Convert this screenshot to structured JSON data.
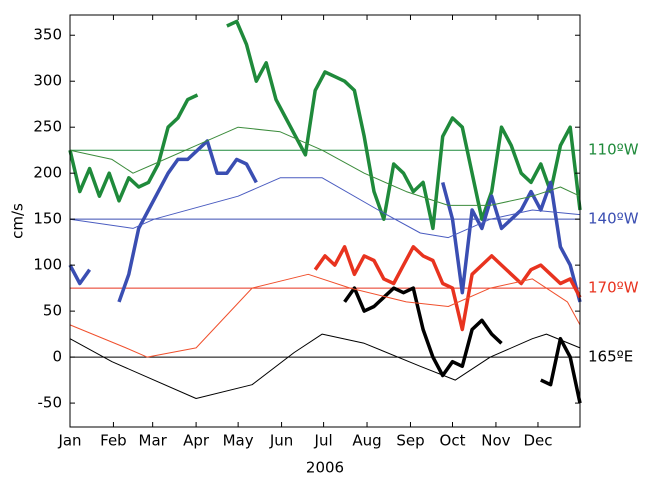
{
  "chart_data": {
    "type": "line",
    "xlabel": "2006",
    "ylabel": "cm/s",
    "xlim": [
      0,
      364
    ],
    "ylim": [
      -76,
      372
    ],
    "xticks": [
      {
        "value": 0,
        "label": "Jan"
      },
      {
        "value": 31,
        "label": "Feb"
      },
      {
        "value": 59,
        "label": "Mar"
      },
      {
        "value": 90,
        "label": "Apr"
      },
      {
        "value": 120,
        "label": "May"
      },
      {
        "value": 151,
        "label": "Jun"
      },
      {
        "value": 181,
        "label": "Jul"
      },
      {
        "value": 212,
        "label": "Aug"
      },
      {
        "value": 243,
        "label": "Sep"
      },
      {
        "value": 273,
        "label": "Oct"
      },
      {
        "value": 304,
        "label": "Nov"
      },
      {
        "value": 334,
        "label": "Dec"
      }
    ],
    "yticks": [
      -50,
      0,
      50,
      100,
      150,
      200,
      250,
      300,
      350
    ],
    "reference_lines": [
      {
        "value": 225,
        "label": "110ºW",
        "color": "#1f8a3b"
      },
      {
        "value": 150,
        "label": "140ºW",
        "color": "#3a4eb2"
      },
      {
        "value": 75,
        "label": "170ºW",
        "color": "#e8331f"
      },
      {
        "value": 0,
        "label": "165ºE",
        "color": "#000000"
      }
    ],
    "series": [
      {
        "color": "#1f8a3b",
        "width": 3.5,
        "x": [
          0,
          7,
          14,
          21,
          28,
          35,
          42,
          49,
          56,
          63,
          70,
          77,
          84,
          91,
          98,
          105,
          112,
          119,
          126,
          133,
          140,
          147,
          154,
          161,
          168,
          175,
          182,
          189,
          196,
          203,
          210,
          217,
          224,
          231,
          238,
          245,
          252,
          259,
          266,
          273,
          280,
          287,
          294,
          301,
          308,
          315,
          322,
          329,
          336,
          343,
          350,
          357,
          364
        ],
        "values": [
          225,
          180,
          205,
          175,
          200,
          170,
          195,
          185,
          190,
          210,
          250,
          260,
          280,
          285,
          null,
          null,
          360,
          365,
          340,
          300,
          320,
          280,
          260,
          240,
          220,
          290,
          310,
          305,
          300,
          290,
          240,
          180,
          150,
          210,
          200,
          180,
          190,
          140,
          240,
          260,
          250,
          200,
          150,
          180,
          250,
          230,
          200,
          190,
          210,
          180,
          230,
          250,
          160
        ]
      },
      {
        "color": "#3a4eb2",
        "width": 3.5,
        "x": [
          0,
          7,
          14,
          21,
          28,
          35,
          42,
          49,
          56,
          63,
          70,
          77,
          84,
          91,
          98,
          105,
          112,
          119,
          126,
          133,
          140,
          266,
          273,
          280,
          287,
          294,
          301,
          308,
          315,
          322,
          329,
          336,
          343,
          350,
          357,
          364
        ],
        "values": [
          100,
          80,
          95,
          null,
          null,
          60,
          90,
          140,
          160,
          180,
          200,
          215,
          215,
          225,
          235,
          200,
          200,
          215,
          210,
          190,
          null,
          190,
          150,
          70,
          160,
          140,
          175,
          140,
          150,
          160,
          180,
          160,
          190,
          120,
          100,
          60
        ]
      },
      {
        "color": "#e8331f",
        "width": 3.5,
        "x": [
          175,
          182,
          189,
          196,
          203,
          210,
          217,
          224,
          231,
          238,
          245,
          252,
          259,
          266,
          273,
          280,
          287,
          294,
          301,
          308,
          315,
          322,
          329,
          336,
          343,
          350,
          357,
          364
        ],
        "values": [
          95,
          110,
          100,
          120,
          90,
          110,
          105,
          85,
          80,
          100,
          120,
          110,
          105,
          80,
          75,
          30,
          90,
          100,
          110,
          100,
          90,
          80,
          95,
          100,
          90,
          80,
          85,
          65
        ]
      },
      {
        "color": "#000000",
        "width": 3.5,
        "x": [
          196,
          203,
          210,
          217,
          224,
          231,
          238,
          245,
          252,
          259,
          266,
          273,
          280,
          287,
          294,
          301,
          308,
          315,
          336,
          343,
          350,
          357,
          364
        ],
        "values": [
          60,
          75,
          50,
          55,
          65,
          75,
          70,
          75,
          30,
          0,
          -20,
          -5,
          -10,
          30,
          40,
          25,
          15,
          null,
          -25,
          -30,
          20,
          0,
          -50
        ]
      },
      {
        "color": "#3c8c3c",
        "width": 1,
        "x": [
          0,
          30,
          45,
          60,
          90,
          120,
          150,
          180,
          210,
          240,
          270,
          300,
          330,
          350,
          364
        ],
        "values": [
          225,
          215,
          200,
          210,
          230,
          250,
          245,
          225,
          200,
          180,
          165,
          165,
          175,
          185,
          175
        ]
      },
      {
        "color": "#4a5cc0",
        "width": 1,
        "x": [
          0,
          45,
          60,
          120,
          150,
          180,
          220,
          250,
          270,
          300,
          330,
          364
        ],
        "values": [
          150,
          140,
          150,
          175,
          195,
          195,
          160,
          135,
          130,
          150,
          160,
          155
        ]
      },
      {
        "color": "#f0502d",
        "width": 1,
        "x": [
          0,
          40,
          55,
          90,
          130,
          170,
          200,
          240,
          270,
          300,
          330,
          355,
          364
        ],
        "values": [
          35,
          10,
          0,
          10,
          75,
          90,
          75,
          60,
          55,
          75,
          85,
          60,
          35
        ]
      },
      {
        "color": "#000000",
        "width": 1,
        "x": [
          0,
          30,
          90,
          130,
          160,
          180,
          210,
          250,
          275,
          300,
          330,
          340,
          364
        ],
        "values": [
          20,
          -5,
          -45,
          -30,
          5,
          25,
          15,
          -10,
          -25,
          0,
          20,
          25,
          10
        ]
      }
    ]
  }
}
